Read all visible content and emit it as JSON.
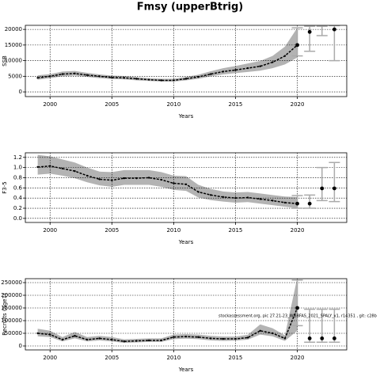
{
  "title": "Fmsy (upperBtrig)",
  "chart_data": [
    {
      "type": "line",
      "ylabel": "SSB",
      "xlabel": "Years",
      "x": [
        1999,
        2000,
        2001,
        2002,
        2003,
        2004,
        2005,
        2006,
        2007,
        2008,
        2009,
        2010,
        2011,
        2012,
        2013,
        2014,
        2015,
        2016,
        2017,
        2018,
        2019,
        2020
      ],
      "values": [
        4500,
        5000,
        5700,
        5900,
        5400,
        5000,
        4600,
        4500,
        4200,
        3900,
        3700,
        3700,
        4200,
        4800,
        5700,
        6500,
        7000,
        7600,
        8200,
        9500,
        11500,
        15000
      ],
      "low": [
        3900,
        4400,
        5000,
        5200,
        4800,
        4400,
        4100,
        4000,
        3700,
        3500,
        3300,
        3300,
        3700,
        4200,
        5000,
        5600,
        6000,
        6400,
        6800,
        7600,
        8800,
        11000
      ],
      "high": [
        5300,
        5700,
        6500,
        6700,
        6100,
        5600,
        5200,
        5100,
        4700,
        4400,
        4200,
        4200,
        4800,
        5500,
        6600,
        7600,
        8300,
        9100,
        9900,
        11500,
        14500,
        20500
      ],
      "forecast": {
        "x": [
          2020,
          2021,
          2022,
          2023
        ],
        "values": [
          15000,
          19200,
          null,
          20000
        ],
        "low": [
          11500,
          13000,
          18000,
          10000
        ],
        "high": [
          20500,
          21000,
          21000,
          21200
        ]
      },
      "xlim": [
        1998,
        2024
      ],
      "ylim": [
        -1500,
        21300
      ],
      "xticks": [
        2000,
        2005,
        2010,
        2015,
        2020
      ],
      "yticks": [
        0,
        5000,
        10000,
        15000,
        20000
      ],
      "grid": true
    },
    {
      "type": "line",
      "ylabel": "F3-5",
      "xlabel": "Years",
      "x": [
        1999,
        2000,
        2001,
        2002,
        2003,
        2004,
        2005,
        2006,
        2007,
        2008,
        2009,
        2010,
        2011,
        2012,
        2013,
        2014,
        2015,
        2016,
        2017,
        2018,
        2019,
        2020
      ],
      "values": [
        1.01,
        1.03,
        0.98,
        0.93,
        0.84,
        0.77,
        0.75,
        0.79,
        0.79,
        0.8,
        0.76,
        0.69,
        0.67,
        0.52,
        0.46,
        0.42,
        0.4,
        0.41,
        0.38,
        0.35,
        0.31,
        0.29
      ],
      "low": [
        0.86,
        0.88,
        0.84,
        0.79,
        0.71,
        0.65,
        0.62,
        0.66,
        0.66,
        0.66,
        0.62,
        0.56,
        0.54,
        0.41,
        0.36,
        0.33,
        0.31,
        0.32,
        0.29,
        0.26,
        0.23,
        0.2
      ],
      "high": [
        1.25,
        1.22,
        1.16,
        1.1,
        1.0,
        0.92,
        0.91,
        0.95,
        0.95,
        0.95,
        0.91,
        0.84,
        0.83,
        0.66,
        0.58,
        0.53,
        0.51,
        0.52,
        0.49,
        0.46,
        0.43,
        0.42
      ],
      "forecast": {
        "x": [
          2020,
          2021,
          2022,
          2023
        ],
        "values": [
          0.29,
          0.29,
          0.59,
          0.59
        ],
        "low": [
          0.2,
          0.2,
          0.35,
          0.33
        ],
        "high": [
          0.45,
          0.46,
          1.0,
          1.1
        ]
      },
      "xlim": [
        1998,
        2024
      ],
      "ylim": [
        -0.08,
        1.29
      ],
      "xticks": [
        2000,
        2005,
        2010,
        2015,
        2020
      ],
      "yticks": [
        {
          "value": 0,
          "label": "0.0"
        },
        0.2,
        0.4,
        0.6,
        0.8,
        {
          "value": 1,
          "label": "1.0"
        },
        1.2
      ],
      "grid": true
    },
    {
      "type": "line",
      "ylabel": "Recruits (age1)",
      "xlabel": "Years",
      "annotation": "stockassessment.org, pic 27.21-23_WGBFAS_2021_SPALY_v1, r14351 , git: c28b",
      "x": [
        1999,
        2000,
        2001,
        2002,
        2003,
        2004,
        2005,
        2006,
        2007,
        2008,
        2009,
        2010,
        2011,
        2012,
        2013,
        2014,
        2015,
        2016,
        2017,
        2018,
        2019,
        2020
      ],
      "values": [
        50000,
        45000,
        25000,
        40000,
        25000,
        30000,
        25000,
        18000,
        20000,
        22000,
        22000,
        35000,
        37000,
        35000,
        30000,
        28000,
        28000,
        33000,
        60000,
        50000,
        30000,
        150000
      ],
      "low": [
        38000,
        35000,
        18000,
        30000,
        18000,
        22000,
        18000,
        12000,
        14000,
        16000,
        16000,
        27000,
        29000,
        27000,
        22000,
        20000,
        21000,
        25000,
        45000,
        38000,
        20000,
        60000
      ],
      "high": [
        68000,
        60000,
        35000,
        55000,
        35000,
        40000,
        35000,
        26000,
        28000,
        30000,
        30000,
        45000,
        47000,
        45000,
        40000,
        37000,
        37000,
        44000,
        85000,
        70000,
        42000,
        270000
      ],
      "forecast": {
        "x": [
          2020,
          2021,
          2022,
          2023
        ],
        "values": [
          150000,
          30000,
          30000,
          30000
        ],
        "low": [
          80000,
          15000,
          15000,
          15000
        ],
        "high": [
          260000,
          145000,
          145000,
          145000
        ]
      },
      "xlim": [
        1998,
        2024
      ],
      "ylim": [
        -15600,
        265600
      ],
      "xticks": [
        2000,
        2005,
        2010,
        2015,
        2020
      ],
      "yticks": [
        0,
        50000,
        100000,
        150000,
        200000,
        250000
      ],
      "grid": true
    }
  ]
}
